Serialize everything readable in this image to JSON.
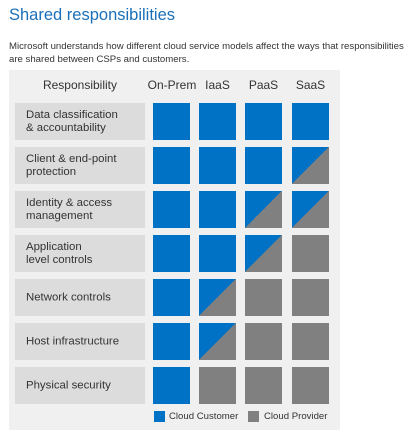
{
  "title": "Shared responsibilities",
  "subtitle": "Microsoft understands how different cloud service models affect the ways that responsibilities are shared between CSPs and customers.",
  "header": {
    "responsibility": "Responsibility",
    "columns": [
      "On-Prem",
      "IaaS",
      "PaaS",
      "SaaS"
    ]
  },
  "rows": [
    {
      "label": "Data classification\n& accountability",
      "cells": [
        "customer",
        "customer",
        "customer",
        "customer"
      ]
    },
    {
      "label": "Client & end-point\nprotection",
      "cells": [
        "customer",
        "customer",
        "customer",
        "shared"
      ]
    },
    {
      "label": "Identity & access\nmanagement",
      "cells": [
        "customer",
        "customer",
        "shared",
        "shared"
      ]
    },
    {
      "label": "Application\nlevel controls",
      "cells": [
        "customer",
        "customer",
        "shared",
        "provider"
      ]
    },
    {
      "label": "Network controls",
      "cells": [
        "customer",
        "shared",
        "provider",
        "provider"
      ]
    },
    {
      "label": "Host infrastructure",
      "cells": [
        "customer",
        "shared",
        "provider",
        "provider"
      ]
    },
    {
      "label": "Physical security",
      "cells": [
        "customer",
        "provider",
        "provider",
        "provider"
      ]
    }
  ],
  "legend": {
    "customer": "Cloud Customer",
    "provider": "Cloud Provider"
  },
  "colors": {
    "customer": "#0072c6",
    "provider": "#808080"
  }
}
